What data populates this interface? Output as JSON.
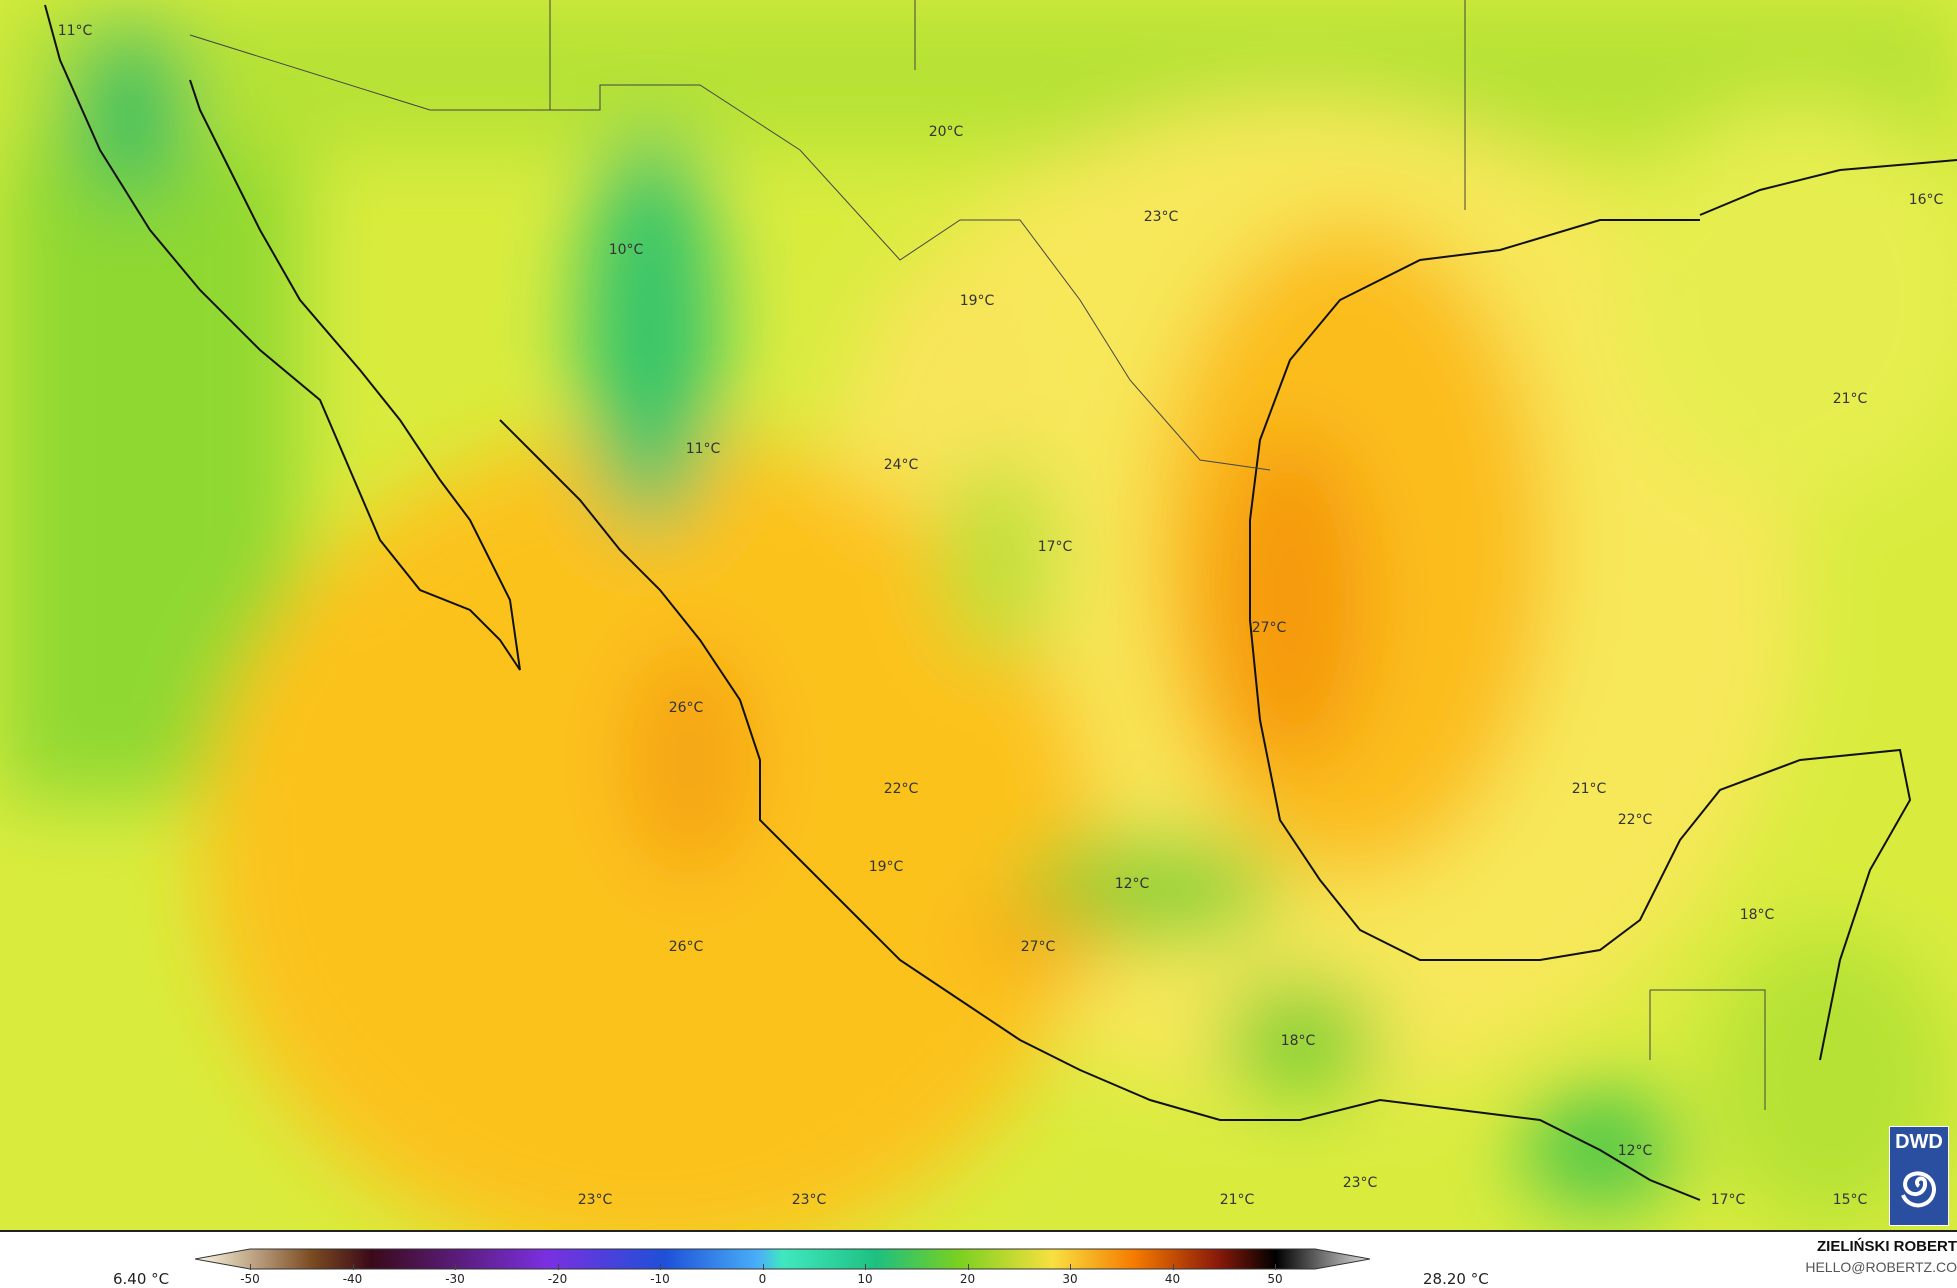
{
  "map": {
    "variable": "temperature",
    "colors": {
      "cold_green": "#2fc463",
      "green": "#7fd638",
      "yellowgreen": "#c8ea3a",
      "yellow": "#f8ea5a",
      "amber": "#fbc21a",
      "orange": "#f59a10"
    },
    "labels": [
      {
        "text": "11°C",
        "lon_lat_region": "Baja north"
      },
      {
        "text": "20°C"
      },
      {
        "text": "23°C"
      },
      {
        "text": "16°C"
      },
      {
        "text": "10°C"
      },
      {
        "text": "19°C"
      },
      {
        "text": "21°C"
      },
      {
        "text": "11°C"
      },
      {
        "text": "24°C"
      },
      {
        "text": "17°C"
      },
      {
        "text": "27°C"
      },
      {
        "text": "26°C"
      },
      {
        "text": "22°C"
      },
      {
        "text": "21°C"
      },
      {
        "text": "22°C"
      },
      {
        "text": "19°C"
      },
      {
        "text": "12°C"
      },
      {
        "text": "18°C"
      },
      {
        "text": "26°C"
      },
      {
        "text": "27°C"
      },
      {
        "text": "18°C"
      },
      {
        "text": "12°C"
      },
      {
        "text": "23°C"
      },
      {
        "text": "23°C"
      },
      {
        "text": "21°C"
      },
      {
        "text": "23°C"
      },
      {
        "text": "17°C"
      },
      {
        "text": "15°C"
      }
    ]
  },
  "legend": {
    "min_label": "6.40 °C",
    "max_label": "28.20 °C",
    "ticks": [
      "-50",
      "-40",
      "-30",
      "-20",
      "-10",
      "0",
      "10",
      "20",
      "30",
      "40",
      "50"
    ],
    "range": [
      -55,
      55
    ]
  },
  "author": {
    "name": "ZIELIŃSKI ROBERT",
    "email": "HELLO@ROBERTZ.CO"
  },
  "logo": {
    "text": "DWD"
  }
}
